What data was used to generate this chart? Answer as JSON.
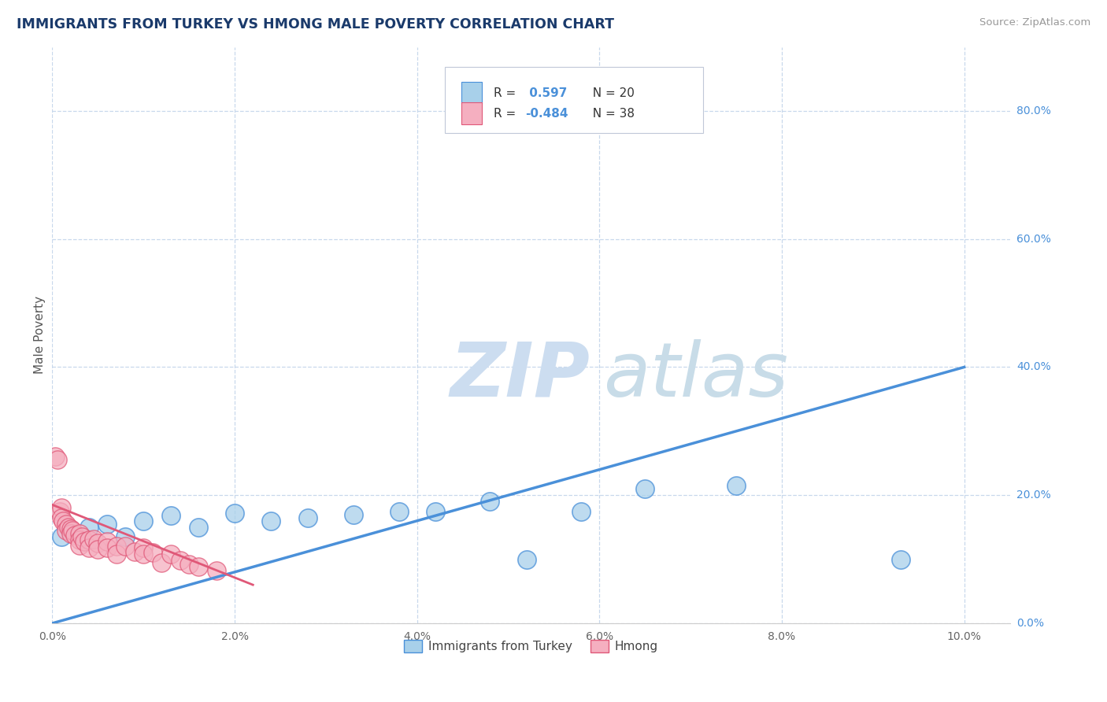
{
  "title": "IMMIGRANTS FROM TURKEY VS HMONG MALE POVERTY CORRELATION CHART",
  "source": "Source: ZipAtlas.com",
  "ylabel": "Male Poverty",
  "legend_label1": "Immigrants from Turkey",
  "legend_label2": "Hmong",
  "r1": "0.597",
  "n1": "20",
  "r2": "-0.484",
  "n2": "38",
  "xlim": [
    0.0,
    0.105
  ],
  "ylim": [
    0.0,
    0.9
  ],
  "xtick_vals": [
    0.0,
    0.02,
    0.04,
    0.06,
    0.08,
    0.1
  ],
  "ytick_vals": [
    0.0,
    0.2,
    0.4,
    0.6,
    0.8
  ],
  "ytick_labels_right": [
    "0.0%",
    "20.0%",
    "40.0%",
    "60.0%",
    "80.0%"
  ],
  "xtick_labels": [
    "0.0%",
    "2.0%",
    "4.0%",
    "6.0%",
    "8.0%",
    "10.0%"
  ],
  "color_turkey": "#a8d0ea",
  "color_hmong": "#f5afc0",
  "color_line_turkey": "#4a90d9",
  "color_line_hmong": "#e05878",
  "background_color": "#ffffff",
  "grid_color": "#c8d8ec",
  "title_color": "#1a3a6b",
  "source_color": "#999999",
  "r_value_color": "#4a90d9",
  "watermark_color": "#dce8f5",
  "turkey_x": [
    0.001,
    0.002,
    0.004,
    0.006,
    0.008,
    0.01,
    0.013,
    0.016,
    0.02,
    0.024,
    0.028,
    0.033,
    0.038,
    0.042,
    0.048,
    0.052,
    0.058,
    0.065,
    0.075,
    0.093
  ],
  "turkey_y": [
    0.135,
    0.145,
    0.15,
    0.155,
    0.135,
    0.16,
    0.168,
    0.15,
    0.172,
    0.16,
    0.165,
    0.17,
    0.175,
    0.175,
    0.19,
    0.1,
    0.175,
    0.21,
    0.215,
    0.1
  ],
  "hmong_x": [
    0.0003,
    0.0006,
    0.0008,
    0.001,
    0.001,
    0.0012,
    0.0015,
    0.0015,
    0.0018,
    0.002,
    0.002,
    0.0022,
    0.0025,
    0.003,
    0.003,
    0.003,
    0.0032,
    0.0035,
    0.004,
    0.004,
    0.0045,
    0.005,
    0.005,
    0.006,
    0.006,
    0.007,
    0.007,
    0.008,
    0.009,
    0.01,
    0.01,
    0.011,
    0.012,
    0.013,
    0.014,
    0.015,
    0.016,
    0.018
  ],
  "hmong_y": [
    0.26,
    0.255,
    0.175,
    0.18,
    0.165,
    0.16,
    0.155,
    0.145,
    0.15,
    0.148,
    0.14,
    0.145,
    0.138,
    0.14,
    0.13,
    0.122,
    0.135,
    0.128,
    0.13,
    0.118,
    0.132,
    0.125,
    0.115,
    0.128,
    0.118,
    0.12,
    0.108,
    0.12,
    0.112,
    0.118,
    0.108,
    0.11,
    0.095,
    0.108,
    0.098,
    0.092,
    0.088,
    0.082
  ],
  "turkey_line_x": [
    0.0,
    0.1
  ],
  "turkey_line_y": [
    0.0,
    0.4
  ],
  "hmong_line_x": [
    0.0,
    0.022
  ],
  "hmong_line_y": [
    0.185,
    0.06
  ]
}
